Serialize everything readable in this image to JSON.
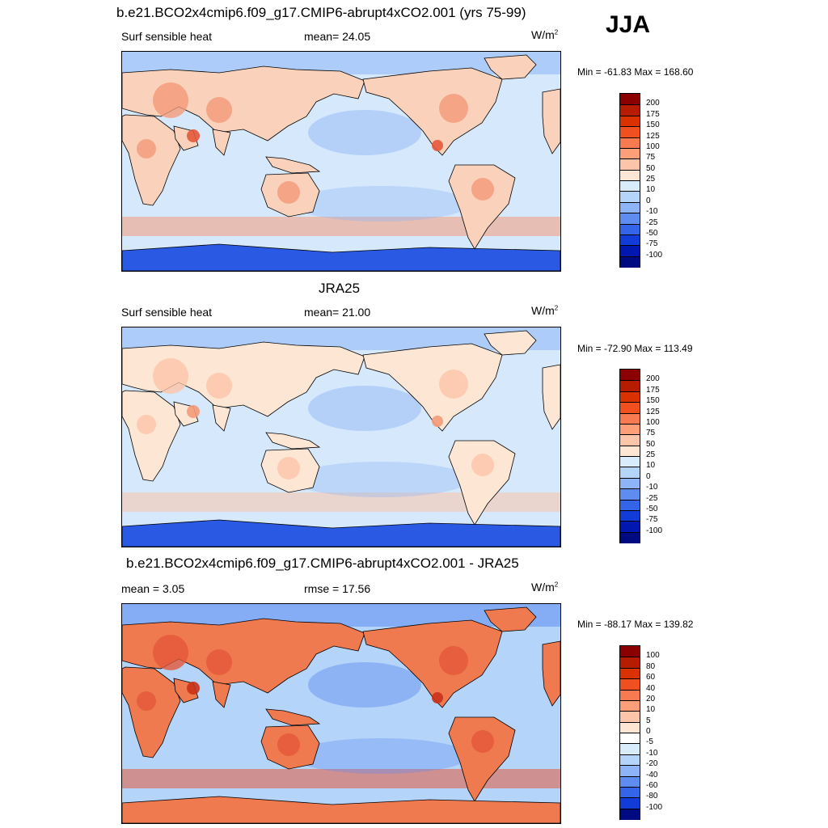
{
  "season": "JJA",
  "panels": [
    {
      "title": "b.e21.BCO2x4cmip6.f09_g17.CMIP6-abrupt4xCO2.001 (yrs 75-99)",
      "left_label": "Surf sensible heat",
      "center_label": "mean=  24.05",
      "units": "W/m",
      "units_exp": "2",
      "minmax": "Min = -61.83 Max = 168.60",
      "colorbar": {
        "labels": [
          "200",
          "175",
          "150",
          "125",
          "100",
          "75",
          "50",
          "25",
          "10",
          "0",
          "-10",
          "-25",
          "-50",
          "-75",
          "-100"
        ],
        "colors": [
          "#8b0000",
          "#b51c00",
          "#d93200",
          "#f05020",
          "#f87a50",
          "#fc9e78",
          "#fcc4a8",
          "#fde6d4",
          "#d8ecfc",
          "#b4d4fa",
          "#8cb4f6",
          "#5f8cf0",
          "#3464e8",
          "#123cd8",
          "#0018b0",
          "#000a80"
        ]
      },
      "map_palette": {
        "ocean": "#d6e8fc",
        "land": "#fad2bc",
        "warm": "#f49a78",
        "hot": "#e4583a",
        "cold": "#8cb4f6",
        "polar": "#2a5ae4"
      }
    },
    {
      "title": "JRA25",
      "left_label": "Surf sensible heat",
      "center_label": "mean=  21.00",
      "units": "W/m",
      "units_exp": "2",
      "minmax": "Min = -72.90 Max = 113.49",
      "colorbar": {
        "labels": [
          "200",
          "175",
          "150",
          "125",
          "100",
          "75",
          "50",
          "25",
          "10",
          "0",
          "-10",
          "-25",
          "-50",
          "-75",
          "-100"
        ],
        "colors": [
          "#8b0000",
          "#b51c00",
          "#d93200",
          "#f05020",
          "#f87a50",
          "#fc9e78",
          "#fcc4a8",
          "#fde6d4",
          "#d8ecfc",
          "#b4d4fa",
          "#8cb4f6",
          "#5f8cf0",
          "#3464e8",
          "#123cd8",
          "#0018b0",
          "#000a80"
        ]
      },
      "map_palette": {
        "ocean": "#d6e8fc",
        "land": "#fde6d4",
        "warm": "#fcc4a8",
        "hot": "#f49a78",
        "cold": "#8cb4f6",
        "polar": "#2a5ae4"
      }
    },
    {
      "title": "b.e21.BCO2x4cmip6.f09_g17.CMIP6-abrupt4xCO2.001 - JRA25",
      "left_label": "mean =   3.05",
      "center_label": "rmse =  17.56",
      "units": "W/m",
      "units_exp": "2",
      "minmax": "Min = -88.17 Max = 139.82",
      "colorbar": {
        "labels": [
          "100",
          "80",
          "60",
          "40",
          "20",
          "10",
          "5",
          "0",
          "-5",
          "-10",
          "-20",
          "-40",
          "-60",
          "-80",
          "-100"
        ],
        "colors": [
          "#8b0000",
          "#b51c00",
          "#d93200",
          "#f05020",
          "#f87a50",
          "#fc9e78",
          "#fcc4a8",
          "#fde6d4",
          "#ffffff",
          "#d8ecfc",
          "#b4d4fa",
          "#8cb4f6",
          "#5f8cf0",
          "#3464e8",
          "#123cd8",
          "#000a80"
        ]
      },
      "map_palette": {
        "ocean": "#b4d4fa",
        "land": "#f07a50",
        "warm": "#e4583a",
        "hot": "#c83218",
        "cold": "#5f8cf0",
        "polar": "#f07a50"
      }
    }
  ]
}
